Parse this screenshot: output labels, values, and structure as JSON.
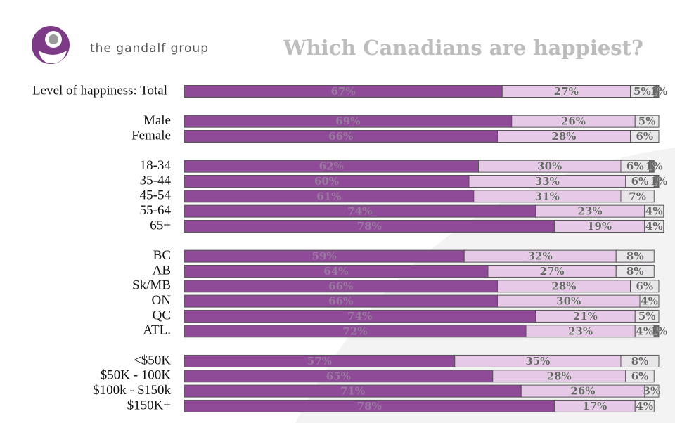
{
  "header": {
    "brand": "the gandalf group"
  },
  "chart_data": {
    "type": "stacked-bar",
    "title": "Which Canadians are happiest?",
    "categories": [
      "Level of happiness: Total",
      null,
      "Male",
      "Female",
      null,
      "18-34",
      "35-44",
      "45-54",
      "55-64",
      "65+",
      null,
      "BC",
      "AB",
      "Sk/MB",
      "ON",
      "QC",
      "ATL.",
      null,
      "<$50K",
      "$50K - 100K",
      "$100k - $150k",
      "$150K+"
    ],
    "xlim": [
      0,
      100
    ],
    "series": [
      {
        "color": "#8f4b97",
        "values": [
          67,
          null,
          69,
          66,
          null,
          62,
          60,
          61,
          74,
          78,
          null,
          59,
          64,
          66,
          66,
          74,
          72,
          null,
          57,
          65,
          71,
          78
        ],
        "value_labels": [
          "67%",
          null,
          "69%",
          "66%",
          null,
          "62%",
          "60%",
          "61%",
          "74%",
          "78%",
          null,
          "59%",
          "64%",
          "66%",
          "66%",
          "74%",
          "72%",
          null,
          "57%",
          "65%",
          "71%",
          "78%"
        ]
      },
      {
        "color": "#e6c9e6",
        "values": [
          27,
          null,
          26,
          28,
          null,
          30,
          33,
          31,
          23,
          19,
          null,
          32,
          27,
          28,
          30,
          21,
          23,
          null,
          35,
          28,
          26,
          17
        ],
        "value_labels": [
          "27%",
          null,
          "26%",
          "28%",
          null,
          "30%",
          "33%",
          "31%",
          "23%",
          "19%",
          null,
          "32%",
          "27%",
          "28%",
          "30%",
          "21%",
          "23%",
          null,
          "35%",
          "28%",
          "26%",
          "17%"
        ]
      },
      {
        "color": "#e9e6e9",
        "values": [
          5,
          null,
          5,
          6,
          null,
          6,
          6,
          7,
          4,
          4,
          null,
          8,
          8,
          6,
          4,
          5,
          4,
          null,
          8,
          6,
          3,
          4
        ],
        "value_labels": [
          "5%",
          null,
          "5%",
          "6%",
          null,
          "6%",
          "6%",
          "7%",
          "4%",
          "4%",
          null,
          "8%",
          "8%",
          "6%",
          "4%",
          "5%",
          "4%",
          null,
          "8%",
          "6%",
          "3%",
          "4%"
        ]
      },
      {
        "color": "#6e6e6e",
        "values": [
          1,
          null,
          null,
          null,
          null,
          1,
          1,
          null,
          null,
          null,
          null,
          null,
          null,
          null,
          null,
          null,
          1,
          null,
          null,
          null,
          null,
          null
        ],
        "value_labels": [
          "1%",
          null,
          null,
          null,
          null,
          "1%",
          "1%",
          null,
          null,
          null,
          null,
          null,
          null,
          null,
          null,
          null,
          "1%",
          null,
          null,
          null,
          null,
          null
        ]
      }
    ]
  }
}
